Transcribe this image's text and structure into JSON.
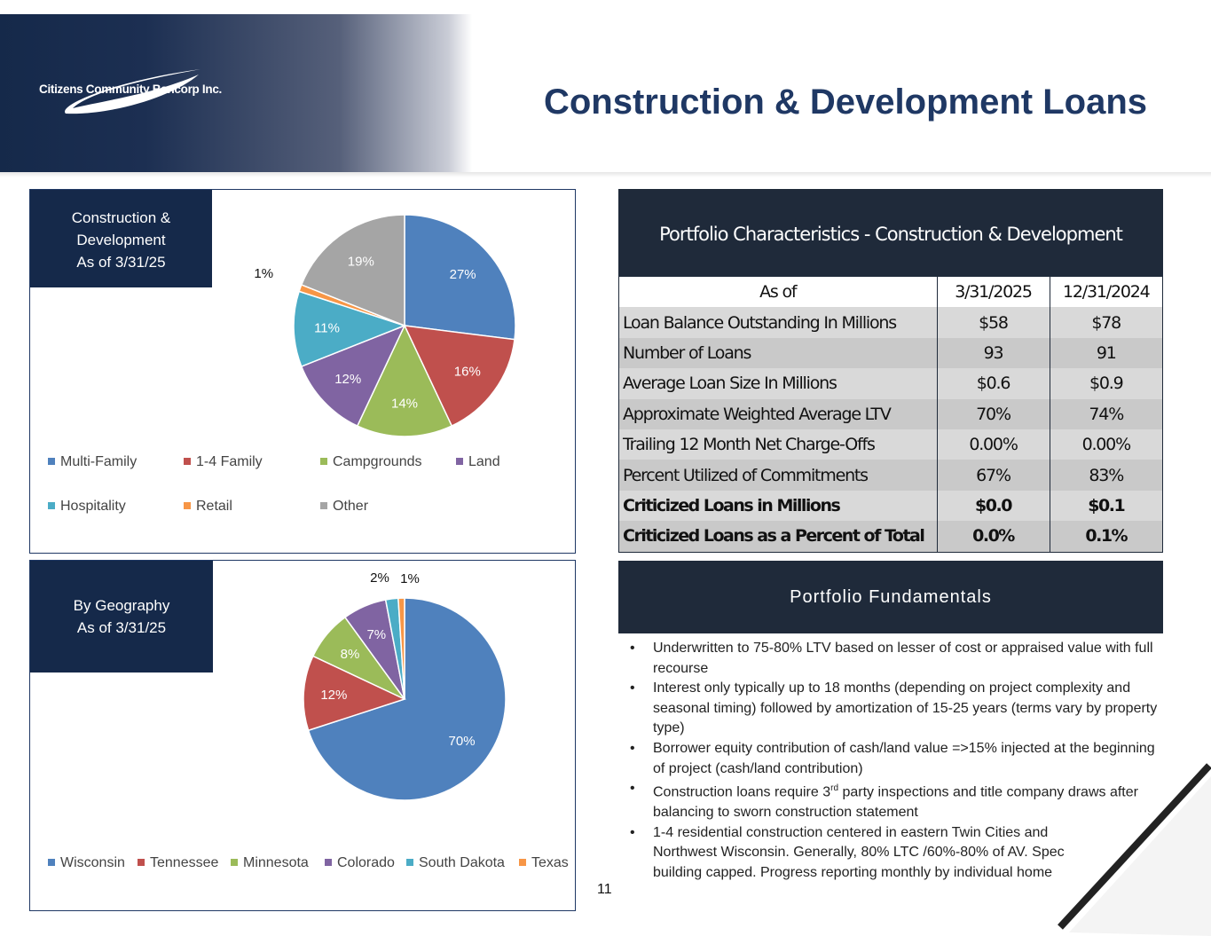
{
  "header": {
    "logo_text": "Citizens Community Bancorp Inc.",
    "title": "Construction & Development Loans"
  },
  "chart_data": [
    {
      "type": "pie",
      "title_lines": [
        "Construction &",
        "Development",
        "As of 3/31/25"
      ],
      "categories": [
        "Multi-Family",
        "1-4 Family",
        "Campgrounds",
        "Land",
        "Hospitality",
        "Retail",
        "Other"
      ],
      "values": [
        27,
        16,
        14,
        12,
        11,
        1,
        19
      ],
      "labels": [
        "27%",
        "16%",
        "14%",
        "12%",
        "11%",
        "1%",
        "19%"
      ],
      "colors": [
        "#4f81bd",
        "#c0504d",
        "#9bbb59",
        "#8064a2",
        "#4bacc6",
        "#f79646",
        "#a5a5a5"
      ],
      "legend": "bottom"
    },
    {
      "type": "pie",
      "title_lines": [
        "By Geography",
        "As of 3/31/25"
      ],
      "categories": [
        "Wisconsin",
        "Tennessee",
        "Minnesota",
        "Colorado",
        "South Dakota",
        "Texas"
      ],
      "values": [
        70,
        12,
        8,
        7,
        2,
        1
      ],
      "labels": [
        "70%",
        "12%",
        "8%",
        "7%",
        "2%",
        "1%"
      ],
      "colors": [
        "#4f81bd",
        "#c0504d",
        "#9bbb59",
        "#8064a2",
        "#4bacc6",
        "#f79646"
      ],
      "legend": "bottom"
    }
  ],
  "portfolio": {
    "heading": "Portfolio Characteristics - Construction & Development",
    "columns": [
      "As of",
      "3/31/2025",
      "12/31/2024"
    ],
    "rows": [
      [
        "Loan Balance Outstanding In Millions",
        "$58",
        "$78"
      ],
      [
        "Number of Loans",
        "93",
        "91"
      ],
      [
        "Average Loan Size In Millions",
        "$0.6",
        "$0.9"
      ],
      [
        "Approximate Weighted Average LTV",
        "70%",
        "74%"
      ],
      [
        "Trailing 12 Month Net Charge-Offs",
        "0.00%",
        "0.00%"
      ],
      [
        "Percent Utilized of Commitments",
        "67%",
        "83%"
      ],
      [
        "Criticized Loans in Millions",
        "$0.0",
        "$0.1"
      ],
      [
        "Criticized Loans as a Percent of Total",
        "0.0%",
        "0.1%"
      ]
    ]
  },
  "fundamentals": {
    "heading": "Portfolio Fundamentals",
    "bullets": [
      "Underwritten to 75-80% LTV based on lesser of cost or appraised value with full recourse",
      "Interest only typically up to 18 months (depending on project complexity and seasonal timing) followed by amortization of 15-25 years (terms vary by property type)",
      "Borrower equity contribution of cash/land value =>15% injected at the beginning of project (cash/land contribution)",
      "Construction loans require 3rd party inspections and title company draws after balancing to sworn construction statement",
      "1-4 residential construction centered in eastern Twin Cities and Northwest Wisconsin.  Generally, 80% LTC /60%-80% of AV. Spec building capped. Progress reporting monthly by individual home"
    ],
    "bullet4_parts": {
      "pre": "Construction loans require 3",
      "sup": "rd",
      "post": " party inspections and title company draws after balancing to sworn construction statement"
    }
  },
  "page_number": "11"
}
